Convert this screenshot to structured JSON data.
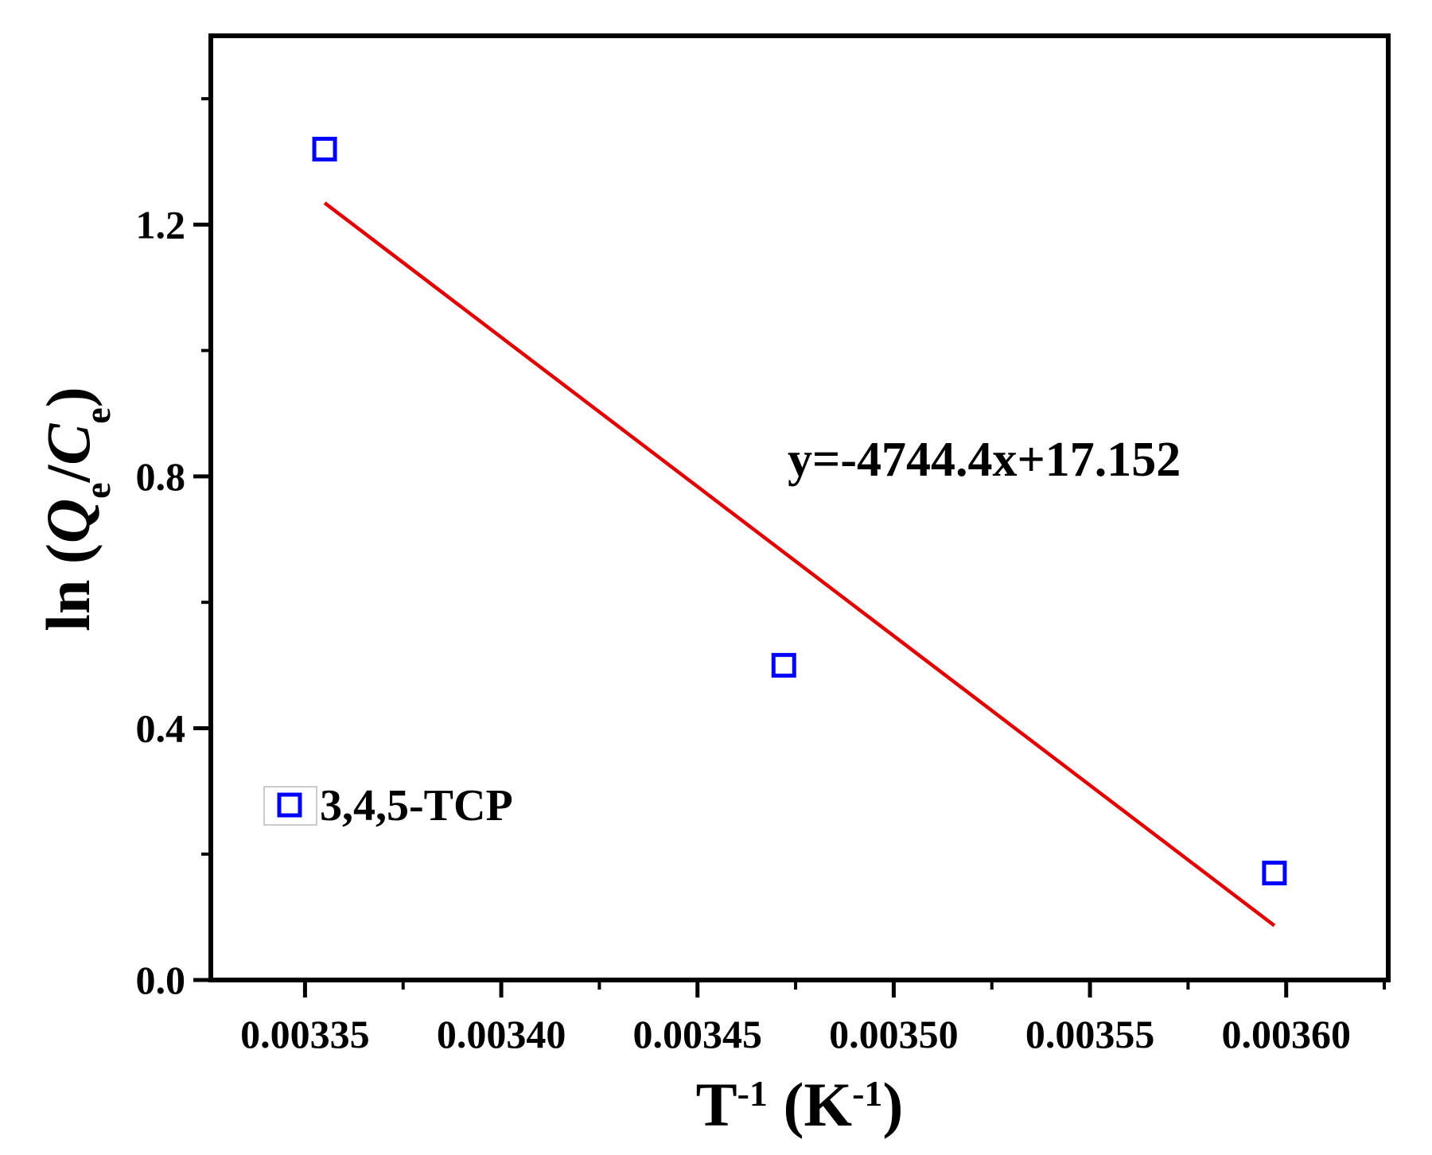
{
  "chart_data": {
    "type": "scatter",
    "x_ticks": [
      "0.00335",
      "0.00340",
      "0.00345",
      "0.00350",
      "0.00355",
      "0.00360"
    ],
    "y_ticks": [
      "0.0",
      "0.4",
      "0.8",
      "1.2"
    ],
    "xlim": [
      0.003326,
      0.003626
    ],
    "ylim": [
      0.0,
      1.5
    ],
    "xlabel": {
      "base": "T",
      "base_sup": "-1",
      "unit_open": " (K",
      "unit_sup": "-1",
      "unit_close": ")"
    },
    "ylabel": {
      "prefix": "ln (",
      "q": "Q",
      "q_sub": "e",
      "slash": "/",
      "c": "C",
      "c_sub": "e",
      "suffix": ")"
    },
    "series": [
      {
        "name": "3,4,5-TCP",
        "marker": "open-square",
        "color": "#0000ff",
        "x": [
          0.003355,
          0.003472,
          0.003597
        ],
        "y": [
          1.32,
          0.5,
          0.17
        ]
      }
    ],
    "fit": {
      "equation": "y=-4744.4x+17.152",
      "color": "#e00000",
      "slope": -4744.4,
      "intercept": 17.152,
      "x_range": [
        0.003355,
        0.003597
      ]
    },
    "legend": {
      "position": "bottom-left",
      "label": "3,4,5-TCP"
    },
    "grid": false
  }
}
